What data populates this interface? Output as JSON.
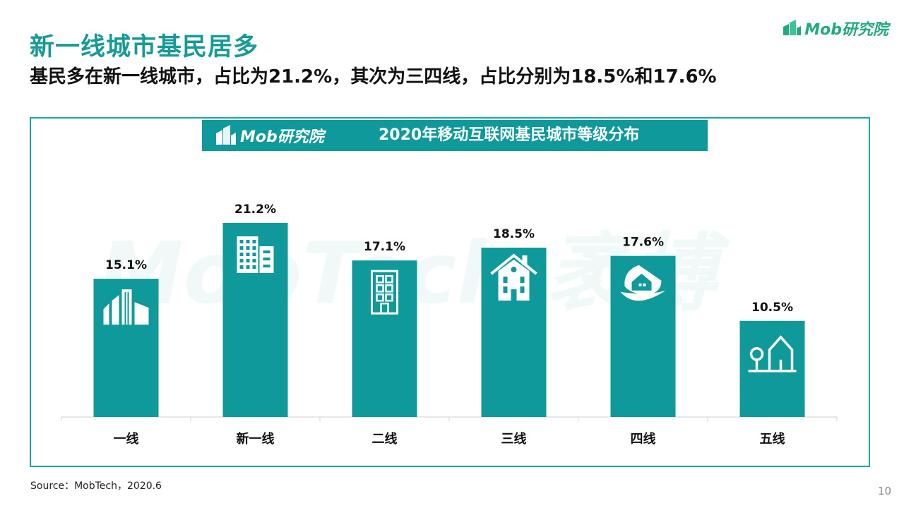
{
  "page": {
    "title": "新一线城市基民居多",
    "subtitle": "基民多在新一线城市，占比为21.2%，其次为三四线，占比分别为18.5%和17.6%",
    "brand": "Mob研究院",
    "banner_brand": "Mob研究院",
    "watermark": "MobTech 袤博",
    "source": "Source：MobTech，2020.6",
    "page_number": "10",
    "accent_color": "#10999a",
    "title_color": "#159a97"
  },
  "chart_data": {
    "type": "bar",
    "title": "2020年移动互联网基民城市等级分布",
    "categories": [
      "一线",
      "新一线",
      "二线",
      "三线",
      "四线",
      "五线"
    ],
    "values": [
      15.1,
      21.2,
      17.1,
      18.5,
      17.6,
      10.5
    ],
    "value_labels": [
      "15.1%",
      "21.2%",
      "17.1%",
      "18.5%",
      "17.6%",
      "10.5%"
    ],
    "bar_icons": [
      "city-skyline-icon",
      "office-tower-icon",
      "apartment-building-icon",
      "house-icon",
      "eco-house-icon",
      "tree-house-icon"
    ],
    "unit": "%",
    "ylim": [
      0,
      24
    ],
    "bar_color": "#10999a",
    "grid": false,
    "legend": "none"
  }
}
